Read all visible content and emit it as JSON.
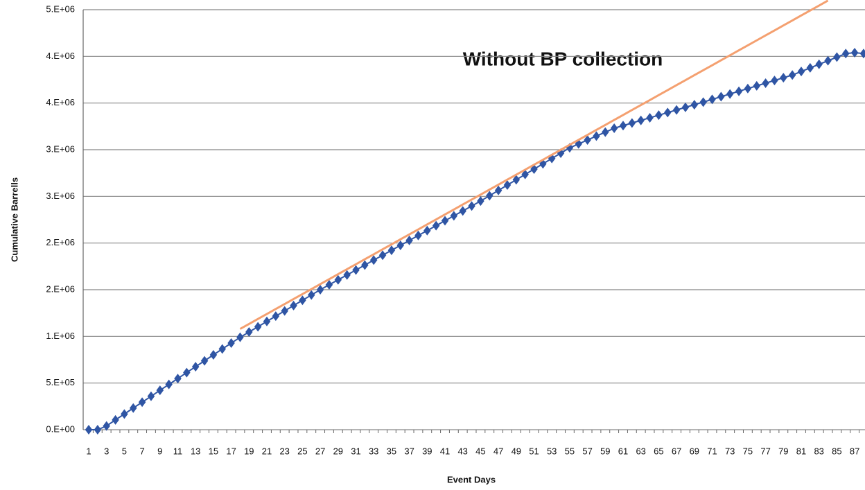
{
  "chart_data": {
    "type": "line",
    "y_label": "Cumulative Barrells",
    "x_label": "Event Days",
    "annotation": "Without BP collection",
    "categories": [
      "1",
      null,
      "3",
      null,
      "5",
      null,
      "7",
      null,
      "9",
      null,
      "11",
      null,
      "13",
      null,
      "15",
      null,
      "17",
      null,
      "19",
      null,
      "21",
      null,
      "23",
      null,
      "25",
      null,
      "27",
      null,
      "29",
      null,
      "31",
      null,
      "33",
      null,
      "35",
      null,
      "37",
      null,
      "39",
      null,
      "41",
      null,
      "43",
      null,
      "45",
      null,
      "47",
      null,
      "49",
      null,
      "51",
      null,
      "53",
      null,
      "55",
      null,
      "57",
      null,
      "59",
      null,
      "61",
      null,
      "63",
      null,
      "65",
      null,
      "67",
      null,
      "69",
      null,
      "71",
      null,
      "73",
      null,
      "75",
      null,
      "77",
      null,
      "79",
      null,
      "81",
      null,
      "83",
      null,
      "85",
      null,
      "87",
      null
    ],
    "series": [
      {
        "color": "#2f55a4",
        "marker": "diamond",
        "values": [
          0,
          0,
          40000,
          105000,
          168000,
          232000,
          295000,
          358000,
          422000,
          485000,
          548000,
          612000,
          675000,
          738000,
          802000,
          865000,
          928000,
          990000,
          1047000,
          1103000,
          1160000,
          1217000,
          1273000,
          1330000,
          1387000,
          1443000,
          1500000,
          1553000,
          1606000,
          1658000,
          1711000,
          1764000,
          1817000,
          1869000,
          1922000,
          1975000,
          2028000,
          2081000,
          2133000,
          2186000,
          2239000,
          2292000,
          2344000,
          2397000,
          2450000,
          2507000,
          2564000,
          2621000,
          2678000,
          2735000,
          2792000,
          2849000,
          2906000,
          2963000,
          3020000,
          3062000,
          3104000,
          3146000,
          3188000,
          3230000,
          3258000,
          3286000,
          3314000,
          3342000,
          3370000,
          3398000,
          3426000,
          3454000,
          3482000,
          3510000,
          3539000,
          3568000,
          3597000,
          3626000,
          3655000,
          3684000,
          3713000,
          3742000,
          3771000,
          3800000,
          3838000,
          3877000,
          3915000,
          3953000,
          3992000,
          4030000,
          4040000,
          4030000
        ]
      },
      {
        "color": "#f4a070",
        "marker": "none",
        "values": [
          null,
          null,
          null,
          null,
          null,
          null,
          null,
          null,
          null,
          null,
          null,
          null,
          null,
          null,
          null,
          null,
          null,
          1080000,
          1133300,
          1186600,
          1239900,
          1293200,
          1346500,
          1399800,
          1453100,
          1506400,
          1559700,
          1613000,
          1666300,
          1719600,
          1772900,
          1826200,
          1879500,
          1932800,
          1986100,
          2039400,
          2092700,
          2146000,
          2199300,
          2252600,
          2305900,
          2359200,
          2412500,
          2465800,
          2519100,
          2572400,
          2625700,
          2679000,
          2732300,
          2785600,
          2838900,
          2892200,
          2945500,
          2998800,
          3052100,
          3105400,
          3158700,
          3212000,
          3265300,
          3318600,
          3371900,
          3425200,
          3478500,
          3531800,
          3585100,
          3638400,
          3691700,
          3745000,
          3798300,
          3851600,
          3904900,
          3958200,
          4011500,
          4064800,
          4118100,
          4171400,
          4224700,
          4278000,
          4331300,
          4384600,
          4437900,
          4491200,
          4544500,
          4597800,
          null,
          null,
          null,
          null
        ]
      }
    ],
    "ylim": [
      0,
      4500000
    ],
    "yticks": [
      {
        "value": 0,
        "label": "0.E+00"
      },
      {
        "value": 500000,
        "label": "5.E+05"
      },
      {
        "value": 1000000,
        "label": "1.E+06"
      },
      {
        "value": 1500000,
        "label": "2.E+06"
      },
      {
        "value": 2000000,
        "label": "2.E+06"
      },
      {
        "value": 2500000,
        "label": "3.E+06"
      },
      {
        "value": 3000000,
        "label": "3.E+06"
      },
      {
        "value": 3500000,
        "label": "4.E+06"
      },
      {
        "value": 4000000,
        "label": "4.E+06"
      },
      {
        "value": 4500000,
        "label": "5.E+06"
      }
    ],
    "grid": true
  }
}
